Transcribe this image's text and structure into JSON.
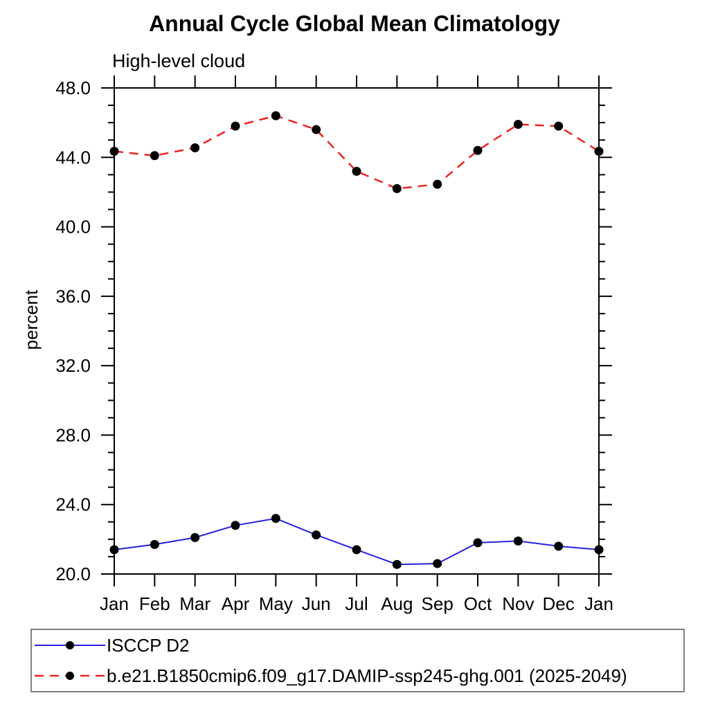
{
  "title": "Annual Cycle Global Mean Climatology",
  "subtitle": "High-level cloud",
  "ylabel": "percent",
  "legend": {
    "position": "bottom",
    "entries": [
      {
        "label": "ISCCP D2",
        "color": "#2222dd",
        "line_style": "solid",
        "marker": "filled-circle",
        "marker_color": "#000000"
      },
      {
        "label": "b.e21.B1850cmip6.f09_g17.DAMIP-ssp245-ghg.001 (2025-2049)",
        "color": "#ee2222",
        "line_style": "dashed",
        "marker": "filled-circle",
        "marker_color": "#000000"
      }
    ]
  },
  "chart_data": {
    "type": "line",
    "title": "Annual Cycle Global Mean Climatology",
    "subtitle": "High-level cloud",
    "xlabel": "",
    "ylabel": "percent",
    "categories": [
      "Jan",
      "Feb",
      "Mar",
      "Apr",
      "May",
      "Jun",
      "Jul",
      "Aug",
      "Sep",
      "Oct",
      "Nov",
      "Dec",
      "Jan"
    ],
    "series": [
      {
        "name": "ISCCP D2",
        "color": "#2222dd",
        "line_style": "solid",
        "values": [
          21.4,
          21.7,
          22.1,
          22.8,
          23.2,
          22.25,
          21.4,
          20.55,
          20.6,
          21.8,
          21.9,
          21.6,
          21.4
        ]
      },
      {
        "name": "b.e21.B1850cmip6.f09_g17.DAMIP-ssp245-ghg.001 (2025-2049)",
        "color": "#ee2222",
        "line_style": "dashed",
        "values": [
          44.35,
          44.1,
          44.55,
          45.8,
          46.4,
          45.6,
          43.2,
          42.2,
          42.45,
          44.4,
          45.9,
          45.8,
          44.35
        ]
      }
    ],
    "ylim": [
      20.0,
      48.0
    ],
    "ytick_major": 4.0,
    "ytick_minor": 1.0,
    "y_tick_labels": [
      "20.0",
      "24.0",
      "28.0",
      "32.0",
      "36.0",
      "40.0",
      "44.0",
      "48.0"
    ],
    "marker": "filled-circle",
    "marker_color": "#000000",
    "grid": false,
    "legend_position": "bottom"
  }
}
